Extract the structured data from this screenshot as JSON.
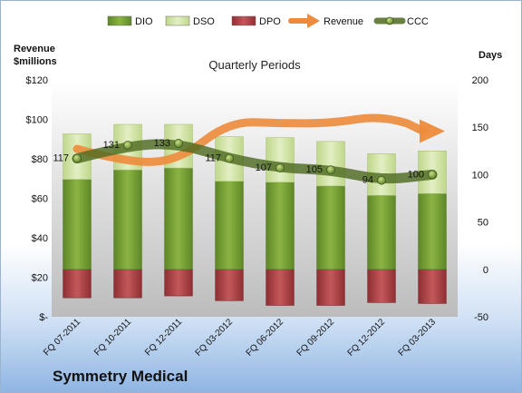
{
  "company": "Symmetry Medical",
  "chart_data": {
    "type": "bar",
    "title": "Quarterly Periods",
    "categories": [
      "FQ 07-2011",
      "FQ 10-2011",
      "FQ 12-2011",
      "FQ 03-2012",
      "FQ 06-2012",
      "FQ 09-2012",
      "FQ 12-2012",
      "FQ 03-2013"
    ],
    "left_axis": {
      "label_line1": "Revenue",
      "label_line2": "$millions",
      "min": 0,
      "max": 120,
      "step": 20,
      "ticks": [
        "$-",
        "$20",
        "$40",
        "$60",
        "$80",
        "$100",
        "$120"
      ]
    },
    "right_axis": {
      "label": "Days",
      "min": -50,
      "max": 200,
      "step": 50,
      "ticks": [
        "-50",
        "0",
        "50",
        "100",
        "150",
        "200"
      ]
    },
    "series": [
      {
        "name": "DIO",
        "axis": "right",
        "color": "#77a033",
        "values": [
          95,
          105,
          107,
          93,
          92,
          88,
          78,
          80
        ]
      },
      {
        "name": "DSO",
        "axis": "right",
        "color": "#d4e6a8",
        "values": [
          48,
          48,
          46,
          47,
          47,
          47,
          44,
          45
        ]
      },
      {
        "name": "DPO",
        "axis": "right",
        "color": "#b5494c",
        "values": [
          -30,
          -30,
          -28,
          -33,
          -38,
          -38,
          -35,
          -36
        ]
      },
      {
        "name": "Revenue",
        "axis": "left",
        "color": "#ed8b3b",
        "values": [
          85,
          78,
          79,
          99,
          98,
          98,
          102,
          94
        ]
      },
      {
        "name": "CCC",
        "axis": "right",
        "color": "#5c7a2a",
        "values": [
          117,
          131,
          133,
          117,
          107,
          105,
          94,
          100
        ]
      }
    ],
    "data_labels": [
      "117",
      "131",
      "133",
      "117",
      "107",
      "105",
      "94",
      "100"
    ],
    "legend": [
      "DIO",
      "DSO",
      "DPO",
      "Revenue",
      "CCC"
    ],
    "legend_position": "top",
    "grid": false
  }
}
